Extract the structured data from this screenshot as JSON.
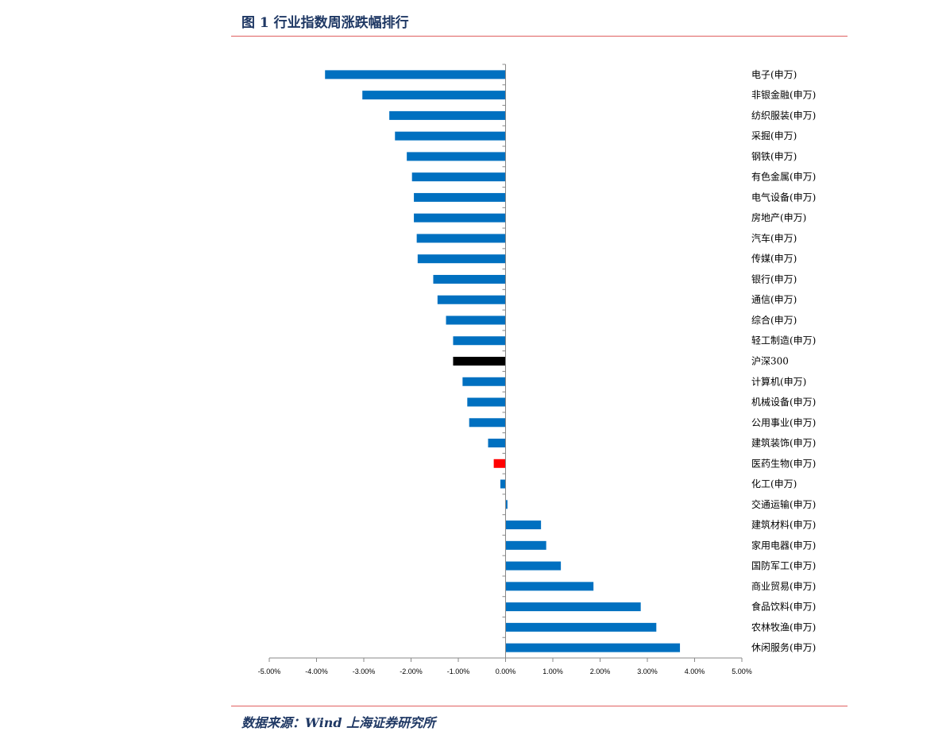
{
  "header": {
    "title": "图 1 行业指数周涨跌幅排行"
  },
  "footer": {
    "source": "数据来源：Wind  上海证券研究所"
  },
  "colors": {
    "default_bar": "#0070c0",
    "benchmark_bar": "#000000",
    "highlight_bar": "#ff0000",
    "rule": "#e06060",
    "title": "#1f3864"
  },
  "chart_data": {
    "type": "bar",
    "orientation": "horizontal",
    "title": "",
    "xlabel": "",
    "ylabel": "",
    "xlim": [
      -5,
      5
    ],
    "x_ticks": [
      "-5.00%",
      "-4.00%",
      "-3.00%",
      "-2.00%",
      "-1.00%",
      "0.00%",
      "1.00%",
      "2.00%",
      "3.00%",
      "4.00%",
      "5.00%"
    ],
    "grid": false,
    "legend": "none",
    "categories": [
      "电子(申万)",
      "非银金融(申万)",
      "纺织服装(申万)",
      "采掘(申万)",
      "钢铁(申万)",
      "有色金属(申万)",
      "电气设备(申万)",
      "房地产(申万)",
      "汽车(申万)",
      "传媒(申万)",
      "银行(申万)",
      "通信(申万)",
      "综合(申万)",
      "轻工制造(申万)",
      "沪深300",
      "计算机(申万)",
      "机械设备(申万)",
      "公用事业(申万)",
      "建筑装饰(申万)",
      "医药生物(申万)",
      "化工(申万)",
      "交通运输(申万)",
      "建筑材料(申万)",
      "家用电器(申万)",
      "国防军工(申万)",
      "商业贸易(申万)",
      "食品饮料(申万)",
      "农林牧渔(申万)",
      "休闲服务(申万)"
    ],
    "values": [
      -3.82,
      -3.03,
      -2.46,
      -2.34,
      -2.09,
      -1.98,
      -1.94,
      -1.94,
      -1.88,
      -1.86,
      -1.53,
      -1.44,
      -1.26,
      -1.11,
      -1.11,
      -0.91,
      -0.81,
      -0.77,
      -0.37,
      -0.25,
      -0.11,
      0.04,
      0.75,
      0.86,
      1.17,
      1.86,
      2.86,
      3.19,
      3.69
    ],
    "special_bars": {
      "沪深300": "benchmark",
      "医药生物(申万)": "highlight"
    }
  }
}
